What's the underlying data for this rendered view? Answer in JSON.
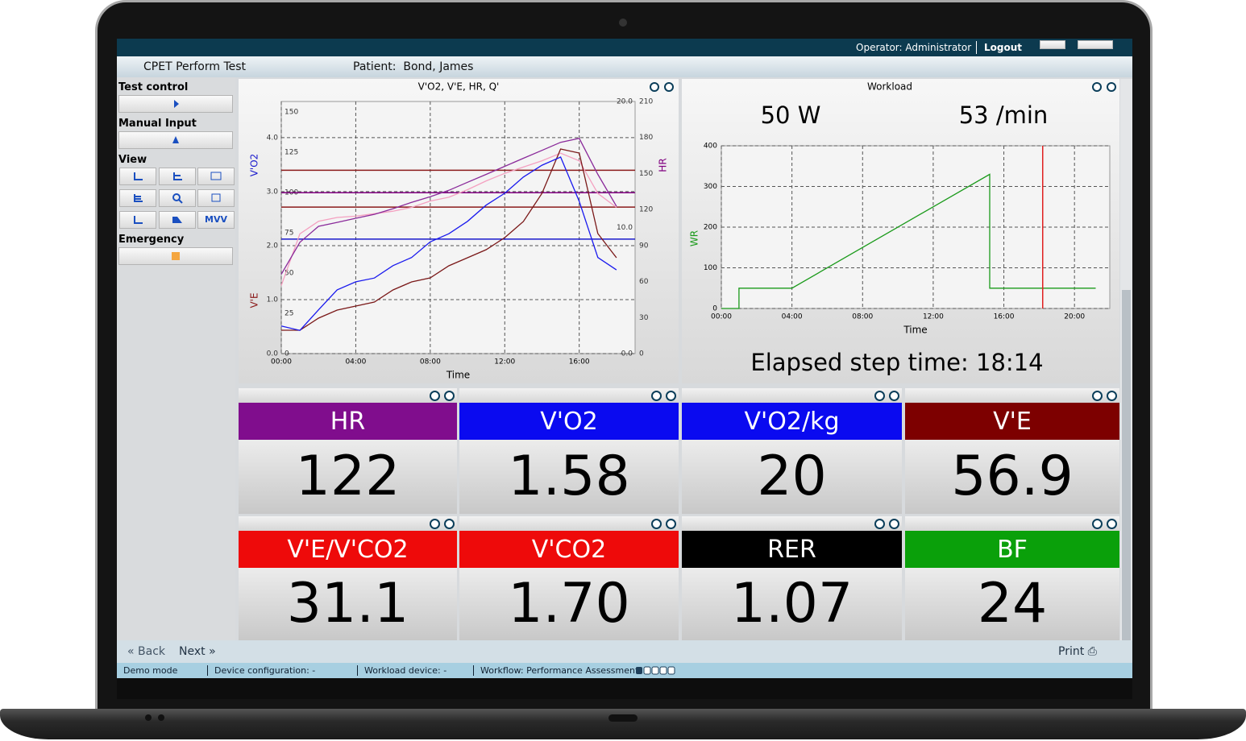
{
  "topbar": {
    "operator": "Operator: Administrator",
    "logout": "Logout"
  },
  "header": {
    "title": "CPET Perform Test",
    "patient": "Patient:  Bond, James"
  },
  "sidebar": {
    "sections": [
      "Test control",
      "Manual Input",
      "View",
      "Emergency"
    ],
    "mvv": "MVV"
  },
  "chart_data": [
    {
      "type": "line",
      "title": "V'O2, V'E, HR, Q'",
      "xlabel": "Time",
      "grid": true,
      "xlim": [
        0,
        19
      ],
      "xticks": [
        {
          "value": 0,
          "label": "00:00"
        },
        {
          "value": 4,
          "label": "04:00"
        },
        {
          "value": 8,
          "label": "08:00"
        },
        {
          "value": 12,
          "label": "12:00"
        },
        {
          "value": 16,
          "label": "16:00"
        }
      ],
      "axes": [
        {
          "label": "V'O2",
          "color": "#1a1acc",
          "side": "left",
          "lim": [
            0,
            4.67
          ],
          "ticks": [
            {
              "value": 0,
              "label": "0.0"
            },
            {
              "value": 1,
              "label": "1.0"
            },
            {
              "value": 2,
              "label": "2.0"
            },
            {
              "value": 3,
              "label": "3.0"
            },
            {
              "value": 4,
              "label": "4.0"
            }
          ]
        },
        {
          "label": "V'E",
          "color": "#8b1a1a",
          "side": "left-inner",
          "lim": [
            0,
            156.5
          ],
          "ticks": [
            0,
            25,
            50,
            75,
            100,
            125,
            150
          ]
        },
        {
          "label": "HR",
          "color": "#800080",
          "side": "right",
          "lim": [
            0,
            210
          ],
          "ticks": [
            0,
            30,
            60,
            90,
            120,
            150,
            180,
            210
          ]
        },
        {
          "color": "#f08cb4",
          "side": "right-inner",
          "lim": [
            0,
            20
          ],
          "ticks": [
            {
              "value": 0,
              "label": "0.0"
            },
            {
              "value": 10,
              "label": "10.0"
            },
            {
              "value": 20,
              "label": "20.0"
            }
          ]
        }
      ],
      "hlines": [
        {
          "axis": 2,
          "value": 152.7,
          "color": "#8b1a1a"
        },
        {
          "axis": 2,
          "value": 134,
          "color": "#800080"
        },
        {
          "axis": 2,
          "value": 122,
          "color": "#8b1a1a"
        },
        {
          "axis": 0,
          "value": 2.12,
          "color": "#1a1acc"
        }
      ],
      "x": [
        0,
        1,
        2,
        3,
        4,
        5,
        6,
        7,
        8,
        9,
        10,
        11,
        12,
        13,
        14,
        15,
        16,
        17,
        18
      ],
      "series": [
        {
          "axis": 3,
          "color": "#f4a0c0",
          "values": [
            5.4,
            9.5,
            10.5,
            10.8,
            10.9,
            11.1,
            11.3,
            11.6,
            12.1,
            12.4,
            13.0,
            13.7,
            14.3,
            14.8,
            15.3,
            15.9,
            15.3,
            12.7,
            11.6
          ]
        },
        {
          "axis": 2,
          "color": "#8a2a9a",
          "values": [
            66,
            92.7,
            106,
            109.3,
            112.7,
            116,
            120.7,
            126,
            130.7,
            136,
            142.7,
            149.3,
            156,
            162.7,
            169.3,
            176,
            179.3,
            149.3,
            122.7
          ]
        },
        {
          "axis": 1,
          "color": "#7a1818",
          "values": [
            14.5,
            14.5,
            22,
            27,
            29.5,
            32,
            39.5,
            44.5,
            47,
            54.5,
            59.5,
            64.5,
            72,
            82,
            99.5,
            127,
            124.5,
            74.5,
            59.5
          ]
        },
        {
          "axis": 0,
          "color": "#1a1aee",
          "values": [
            0.51,
            0.43,
            0.81,
            1.18,
            1.33,
            1.4,
            1.63,
            1.78,
            2.07,
            2.22,
            2.45,
            2.75,
            2.97,
            3.27,
            3.49,
            3.64,
            2.82,
            1.78,
            1.55
          ]
        }
      ]
    },
    {
      "type": "line",
      "title": "Workload",
      "readouts": [
        "50 W",
        "53 /min"
      ],
      "footer": "Elapsed step time: 18:14",
      "xlabel": "Time",
      "ylabel": "WR",
      "ylabel_color": "#1a9a1a",
      "grid": true,
      "xlim": [
        0,
        22
      ],
      "xticks": [
        {
          "value": 0,
          "label": "00:00"
        },
        {
          "value": 4,
          "label": "04:00"
        },
        {
          "value": 8,
          "label": "08:00"
        },
        {
          "value": 12,
          "label": "12:00"
        },
        {
          "value": 16,
          "label": "16:00"
        },
        {
          "value": 20,
          "label": "20:00"
        }
      ],
      "ylim": [
        0,
        400
      ],
      "yticks": [
        0,
        100,
        200,
        300,
        400
      ],
      "x": [
        0,
        1,
        1,
        4,
        15.2,
        15.2,
        21.2
      ],
      "values": [
        0,
        0,
        50,
        50,
        330,
        50,
        50
      ],
      "color": "#1a9a1a",
      "marker_x": 18.2,
      "marker_color": "#e02020"
    }
  ],
  "tiles": [
    {
      "label": "HR",
      "color": "#800d8d",
      "value": "122"
    },
    {
      "label": "V'O2",
      "color": "#0a0af0",
      "value": "1.58"
    },
    {
      "label": "V'O2/kg",
      "color": "#0a0af0",
      "value": "20"
    },
    {
      "label": "V'E",
      "color": "#7d0000",
      "value": "56.9"
    },
    {
      "label": "V'E/V'CO2",
      "color": "#ee0a0a",
      "value": "31.1"
    },
    {
      "label": "V'CO2",
      "color": "#ee0a0a",
      "value": "1.70"
    },
    {
      "label": "RER",
      "color": "#000000",
      "value": "1.07"
    },
    {
      "label": "BF",
      "color": "#0aa00a",
      "value": "24"
    }
  ],
  "nav": {
    "back": "Back",
    "next": "Next",
    "print": "Print"
  },
  "status": [
    "Demo mode",
    "Device configuration: -",
    "Workload device: -",
    "Workflow: Performance Assessment"
  ]
}
